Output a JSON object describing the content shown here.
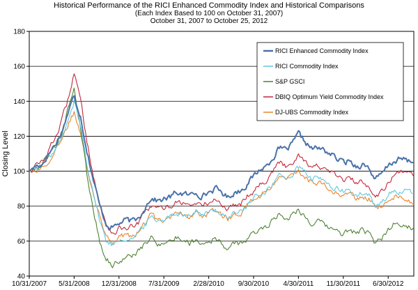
{
  "chart_data": {
    "type": "line",
    "title": "Historical Performance of the RICI Enhanced Commodity Index and Historical Comparisons",
    "subtitle_1": "(Each Index Based to 100 on October 31, 2007)",
    "subtitle_2": "October 31, 2007 to October 25, 2012",
    "xlabel": "",
    "ylabel": "Closing Level",
    "ylim": [
      40,
      180
    ],
    "yticks": [
      40,
      60,
      80,
      100,
      120,
      140,
      160,
      180
    ],
    "x_range_months": [
      0,
      60
    ],
    "xticks": [
      {
        "label": "10/31/2007",
        "month": 0
      },
      {
        "label": "5/31/2008",
        "month": 7
      },
      {
        "label": "12/31/2008",
        "month": 14
      },
      {
        "label": "7/31/2009",
        "month": 21
      },
      {
        "label": "2/28/2010",
        "month": 28
      },
      {
        "label": "9/30/2010",
        "month": 35
      },
      {
        "label": "4/30/2011",
        "month": 42
      },
      {
        "label": "11/30/2011",
        "month": 49
      },
      {
        "label": "6/30/2012",
        "month": 56
      }
    ],
    "grid": "horizontal",
    "legend_position": "top-right",
    "anchor_months": [
      0,
      1,
      2,
      3,
      4,
      5,
      6,
      7,
      8,
      9,
      10,
      11,
      12,
      13,
      14,
      15,
      16,
      17,
      18,
      19,
      20,
      21,
      22,
      23,
      24,
      25,
      26,
      27,
      28,
      29,
      30,
      31,
      32,
      33,
      34,
      35,
      36,
      37,
      38,
      39,
      40,
      41,
      42,
      43,
      44,
      45,
      46,
      47,
      48,
      49,
      50,
      51,
      52,
      53,
      54,
      55,
      56,
      57,
      58,
      59,
      60
    ],
    "series": [
      {
        "name": "RICI Enhanced Commodity Index",
        "color": "#4a72a8",
        "values": [
          100,
          103,
          104,
          110,
          115,
          122,
          133,
          143,
          132,
          112,
          95,
          80,
          70,
          68,
          70,
          72,
          71,
          73,
          79,
          85,
          83,
          84,
          85,
          88,
          87,
          86,
          88,
          86,
          88,
          90,
          88,
          85,
          88,
          89,
          93,
          97,
          101,
          103,
          108,
          113,
          112,
          115,
          121,
          117,
          113,
          113,
          112,
          110,
          107,
          105,
          106,
          103,
          104,
          102,
          95,
          98,
          103,
          106,
          107,
          106,
          105
        ]
      },
      {
        "name": "RICI Commodity Index",
        "color": "#5ec7e0",
        "values": [
          100,
          102,
          103,
          108,
          112,
          118,
          128,
          140,
          126,
          105,
          88,
          72,
          60,
          58,
          61,
          62,
          62,
          64,
          69,
          74,
          72,
          73,
          74,
          77,
          76,
          75,
          77,
          75,
          76,
          78,
          76,
          74,
          76,
          77,
          80,
          84,
          87,
          89,
          93,
          97,
          96,
          98,
          102,
          99,
          96,
          96,
          94,
          92,
          90,
          88,
          89,
          86,
          87,
          86,
          79,
          82,
          87,
          89,
          88,
          88,
          87
        ]
      },
      {
        "name": "S&P GSCI",
        "color": "#4e8033",
        "values": [
          100,
          102,
          104,
          110,
          114,
          121,
          135,
          148,
          126,
          98,
          78,
          60,
          50,
          46,
          49,
          50,
          52,
          54,
          58,
          62,
          58,
          60,
          60,
          62,
          61,
          59,
          61,
          59,
          60,
          62,
          58,
          56,
          58,
          59,
          61,
          64,
          67,
          69,
          72,
          76,
          73,
          75,
          79,
          74,
          70,
          71,
          69,
          67,
          66,
          64,
          66,
          65,
          66,
          64,
          58,
          62,
          66,
          71,
          70,
          68,
          68
        ]
      },
      {
        "name": "DBIQ Optimum Yield Commodity Index",
        "color": "#c0273a",
        "values": [
          100,
          103,
          105,
          112,
          119,
          128,
          140,
          157,
          140,
          118,
          98,
          80,
          70,
          65,
          67,
          68,
          68,
          70,
          76,
          80,
          78,
          79,
          80,
          83,
          82,
          80,
          82,
          80,
          82,
          84,
          81,
          78,
          81,
          82,
          86,
          89,
          93,
          95,
          100,
          105,
          103,
          105,
          110,
          106,
          103,
          103,
          101,
          99,
          97,
          95,
          96,
          93,
          94,
          92,
          86,
          89,
          93,
          98,
          99,
          98,
          97
        ]
      },
      {
        "name": "DJ-UBS Commodity Index",
        "color": "#e8852e",
        "values": [
          100,
          101,
          102,
          106,
          110,
          117,
          126,
          134,
          122,
          104,
          88,
          74,
          64,
          60,
          62,
          63,
          63,
          65,
          70,
          75,
          72,
          73,
          74,
          77,
          76,
          74,
          76,
          74,
          76,
          78,
          75,
          73,
          75,
          76,
          80,
          83,
          86,
          88,
          92,
          96,
          95,
          97,
          100,
          97,
          94,
          94,
          92,
          90,
          88,
          86,
          87,
          84,
          85,
          84,
          78,
          80,
          84,
          86,
          84,
          83,
          81
        ]
      }
    ]
  }
}
